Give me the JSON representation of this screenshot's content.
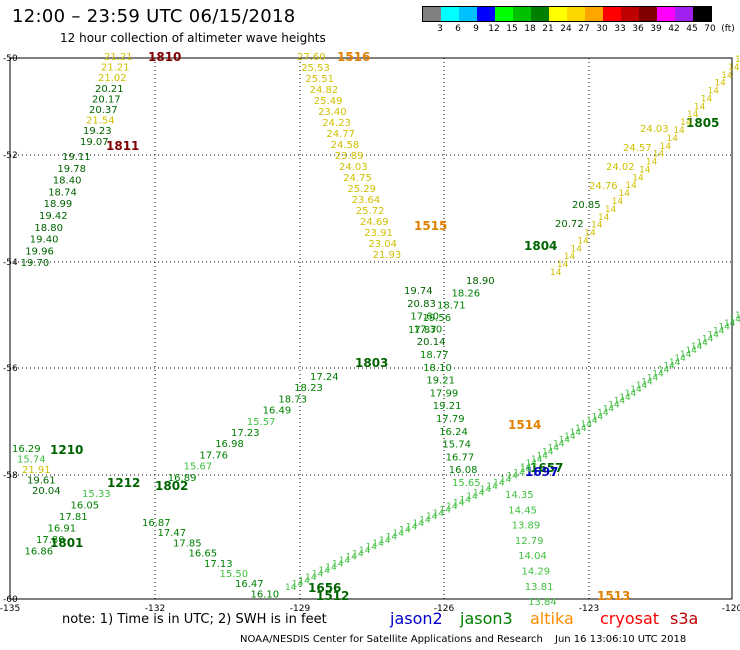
{
  "header": {
    "title": "12:00 – 23:59 UTC 06/15/2018",
    "subtitle": "12 hour collection of altimeter wave heights"
  },
  "color_scale": {
    "labels": [
      "3",
      "6",
      "9",
      "12",
      "15",
      "18",
      "21",
      "24",
      "27",
      "30",
      "33",
      "36",
      "39",
      "42",
      "45",
      "70",
      "(ft)"
    ],
    "colors": [
      "#808080",
      "#00ffff",
      "#00c0ff",
      "#0000ff",
      "#00ff00",
      "#00c000",
      "#008000",
      "#ffff00",
      "#ffd700",
      "#ffa500",
      "#ff0000",
      "#c00000",
      "#800000",
      "#ff00ff",
      "#a020f0",
      "#000000"
    ]
  },
  "axes": {
    "x_ticks": [
      "-135",
      "-132",
      "-129",
      "-126",
      "-123",
      "-120"
    ],
    "y_ticks": [
      "-50",
      "-52",
      "-54",
      "-56",
      "-58",
      "-60"
    ]
  },
  "tracks": [
    {
      "name": "1810",
      "label_color": "#800000",
      "points": [
        {
          "v": "21.21",
          "c": "#d0c000"
        },
        {
          "v": "21.21",
          "c": "#d0c000"
        },
        {
          "v": "21.02",
          "c": "#d0c000"
        },
        {
          "v": "20.21",
          "c": "#006400"
        },
        {
          "v": "20.17",
          "c": "#006400"
        },
        {
          "v": "20.37",
          "c": "#006400"
        },
        {
          "v": "21.54",
          "c": "#d0c000"
        },
        {
          "v": "19.23",
          "c": "#006400"
        },
        {
          "v": "19.07",
          "c": "#006400"
        }
      ]
    },
    {
      "name": "1811",
      "label_color": "#800000",
      "points": [
        {
          "v": "19.11",
          "c": "#006400"
        },
        {
          "v": "19.78",
          "c": "#006400"
        },
        {
          "v": "18.40",
          "c": "#006400"
        },
        {
          "v": "18.74",
          "c": "#006400"
        },
        {
          "v": "18.99",
          "c": "#006400"
        },
        {
          "v": "19.42",
          "c": "#006400"
        },
        {
          "v": "18.80",
          "c": "#006400"
        },
        {
          "v": "19.40",
          "c": "#006400"
        },
        {
          "v": "19.96",
          "c": "#006400"
        },
        {
          "v": "19.70",
          "c": "#006400"
        }
      ]
    },
    {
      "name": "1516",
      "label_color": "#e08000",
      "points": [
        {
          "v": "27.60",
          "c": "#d0c000"
        },
        {
          "v": "25.53",
          "c": "#d0c000"
        },
        {
          "v": "25.51",
          "c": "#d0c000"
        },
        {
          "v": "24.82",
          "c": "#d0c000"
        },
        {
          "v": "25.49",
          "c": "#d0c000"
        },
        {
          "v": "23.40",
          "c": "#d0c000"
        },
        {
          "v": "24.23",
          "c": "#d0c000"
        },
        {
          "v": "24.77",
          "c": "#d0c000"
        },
        {
          "v": "24.58",
          "c": "#d0c000"
        },
        {
          "v": "23.89",
          "c": "#d0c000"
        },
        {
          "v": "24.03",
          "c": "#d0c000"
        },
        {
          "v": "24.75",
          "c": "#d0c000"
        },
        {
          "v": "25.29",
          "c": "#d0c000"
        },
        {
          "v": "23.64",
          "c": "#d0c000"
        },
        {
          "v": "25.72",
          "c": "#d0c000"
        },
        {
          "v": "24.69",
          "c": "#d0c000"
        },
        {
          "v": "23.91",
          "c": "#d0c000"
        },
        {
          "v": "23.04",
          "c": "#d0c000"
        },
        {
          "v": "21.93",
          "c": "#d0c000"
        }
      ]
    },
    {
      "name": "1515",
      "label_color": "#e08000",
      "points": [
        {
          "v": "19.74",
          "c": "#006400"
        },
        {
          "v": "20.83",
          "c": "#006400"
        },
        {
          "v": "17.60",
          "c": "#008000"
        },
        {
          "v": "17.30",
          "c": "#008000"
        },
        {
          "v": "20.14",
          "c": "#006400"
        },
        {
          "v": "18.77",
          "c": "#008000"
        },
        {
          "v": "18.10",
          "c": "#008000"
        },
        {
          "v": "19.21",
          "c": "#008000"
        },
        {
          "v": "17.99",
          "c": "#008000"
        },
        {
          "v": "19.21",
          "c": "#008000"
        },
        {
          "v": "17.79",
          "c": "#008000"
        },
        {
          "v": "16.24",
          "c": "#008000"
        },
        {
          "v": "15.74",
          "c": "#008000"
        },
        {
          "v": "16.77",
          "c": "#008000"
        },
        {
          "v": "16.08",
          "c": "#008000"
        },
        {
          "v": "15.65",
          "c": "#40c040"
        }
      ]
    },
    {
      "name": "1514",
      "label_color": "#e08000",
      "points": [
        {
          "v": "14.35",
          "c": "#40c040"
        },
        {
          "v": "14.45",
          "c": "#40c040"
        },
        {
          "v": "13.89",
          "c": "#40c040"
        },
        {
          "v": "12.79",
          "c": "#40c040"
        },
        {
          "v": "14.04",
          "c": "#40c040"
        },
        {
          "v": "14.29",
          "c": "#40c040"
        },
        {
          "v": "13.81",
          "c": "#40c040"
        },
        {
          "v": "13.84",
          "c": "#40c040"
        }
      ]
    },
    {
      "name": "1805",
      "label_color": "#006400",
      "points": [
        {
          "v": "24.03",
          "c": "#d0c000"
        },
        {
          "v": "24.57",
          "c": "#d0c000"
        },
        {
          "v": "24.02",
          "c": "#d0c000"
        },
        {
          "v": "24.76",
          "c": "#d0c000"
        },
        {
          "v": "20.85",
          "c": "#006400"
        },
        {
          "v": "20.72",
          "c": "#006400"
        }
      ]
    },
    {
      "name": "1804",
      "label_color": "#006400",
      "points": [
        {
          "v": "18.90",
          "c": "#006400"
        },
        {
          "v": "18.26",
          "c": "#008000"
        },
        {
          "v": "18.71",
          "c": "#008000"
        },
        {
          "v": "19.56",
          "c": "#008000"
        },
        {
          "v": "17.87",
          "c": "#008000"
        }
      ]
    },
    {
      "name": "1803",
      "label_color": "#006400",
      "points": [
        {
          "v": "17.24",
          "c": "#008000"
        },
        {
          "v": "18.23",
          "c": "#008000"
        },
        {
          "v": "18.73",
          "c": "#008000"
        },
        {
          "v": "16.49",
          "c": "#008000"
        },
        {
          "v": "15.57",
          "c": "#40c040"
        },
        {
          "v": "17.23",
          "c": "#008000"
        },
        {
          "v": "16.98",
          "c": "#008000"
        },
        {
          "v": "17.76",
          "c": "#008000"
        },
        {
          "v": "15.67",
          "c": "#40c040"
        },
        {
          "v": "16.89",
          "c": "#008000"
        }
      ]
    },
    {
      "name": "1210",
      "label_color": "#006400",
      "points": [
        {
          "v": "16.29",
          "c": "#008000"
        },
        {
          "v": "15.74",
          "c": "#40c040"
        },
        {
          "v": "21.91",
          "c": "#d0c000"
        },
        {
          "v": "19.61",
          "c": "#006400"
        },
        {
          "v": "20.04",
          "c": "#006400"
        }
      ]
    },
    {
      "name": "1802",
      "label_color": "#006400",
      "points": [
        {
          "v": "15.33",
          "c": "#40c040"
        },
        {
          "v": "16.05",
          "c": "#008000"
        },
        {
          "v": "17.81",
          "c": "#008000"
        },
        {
          "v": "16.91",
          "c": "#008000"
        },
        {
          "v": "17.80",
          "c": "#008000"
        },
        {
          "v": "16.86",
          "c": "#008000"
        }
      ]
    },
    {
      "name": "1801",
      "label_color": "#006400",
      "points": [
        {
          "v": "16.87",
          "c": "#008000"
        },
        {
          "v": "17.47",
          "c": "#008000"
        },
        {
          "v": "17.85",
          "c": "#008000"
        },
        {
          "v": "16.65",
          "c": "#008000"
        },
        {
          "v": "17.13",
          "c": "#008000"
        },
        {
          "v": "15.50",
          "c": "#40c040"
        },
        {
          "v": "16.47",
          "c": "#008000"
        },
        {
          "v": "16.10",
          "c": "#008000"
        }
      ]
    },
    {
      "name": "1656",
      "label_color": "#006400",
      "points": []
    },
    {
      "name": "1657",
      "label_color": "#006400",
      "points": []
    },
    {
      "name": "1697",
      "label_color": "#0000c0",
      "points": []
    },
    {
      "name": "1512",
      "label_color": "#006400",
      "points": []
    },
    {
      "name": "1513",
      "label_color": "#e08000",
      "points": []
    },
    {
      "name": "1212",
      "label_color": "#006400",
      "points": []
    }
  ],
  "notes": {
    "note_text": "note:  1) Time is in UTC;  2) SWH is in feet"
  },
  "satellites": [
    {
      "name": "jason2",
      "color": "#0000cc"
    },
    {
      "name": "jason3",
      "color": "#008000"
    },
    {
      "name": "altika",
      "color": "#ff8c00"
    },
    {
      "name": "cryosat",
      "color": "#ff0000"
    },
    {
      "name": "s3a",
      "color": "#c00000"
    }
  ],
  "footer": {
    "credit": "NOAA/NESDIS Center for Satellite Applications and Research",
    "timestamp": "Jun 16 13:06:10 UTC 2018"
  }
}
